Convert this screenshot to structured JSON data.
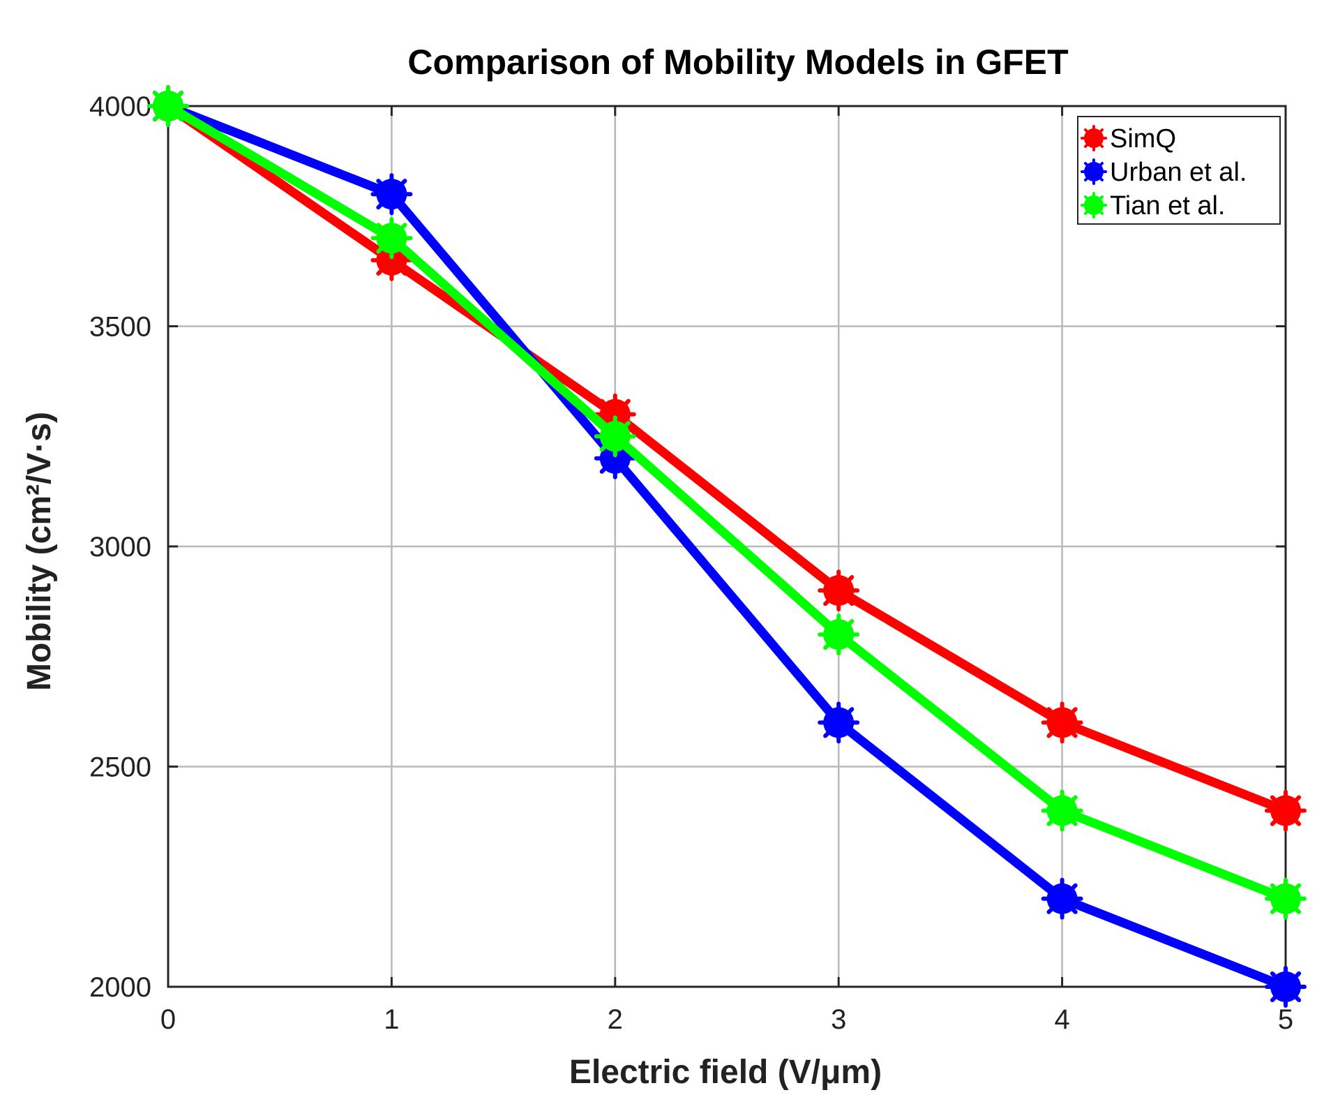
{
  "chart_data": {
    "type": "line",
    "title": "Comparison of Mobility Models in GFET",
    "xlabel": "Electric field (V/μm)",
    "ylabel": "Mobility (cm²/V·s)",
    "x": [
      0,
      1,
      2,
      3,
      4,
      5
    ],
    "xlim": [
      0,
      5
    ],
    "ylim": [
      2000,
      4000
    ],
    "xticks": [
      0,
      1,
      2,
      3,
      4,
      5
    ],
    "yticks": [
      2000,
      2500,
      3000,
      3500,
      4000
    ],
    "grid": true,
    "legend_position": "top-right",
    "series": [
      {
        "name": "SimQ",
        "color": "#ff0000",
        "values": [
          4000,
          3650,
          3300,
          2900,
          2600,
          2400
        ]
      },
      {
        "name": "Urban et al.",
        "color": "#0000ff",
        "values": [
          4000,
          3800,
          3200,
          2600,
          2200,
          2000
        ]
      },
      {
        "name": "Tian et al.",
        "color": "#00ff00",
        "values": [
          4000,
          3700,
          3250,
          2800,
          2400,
          2200
        ]
      }
    ]
  }
}
